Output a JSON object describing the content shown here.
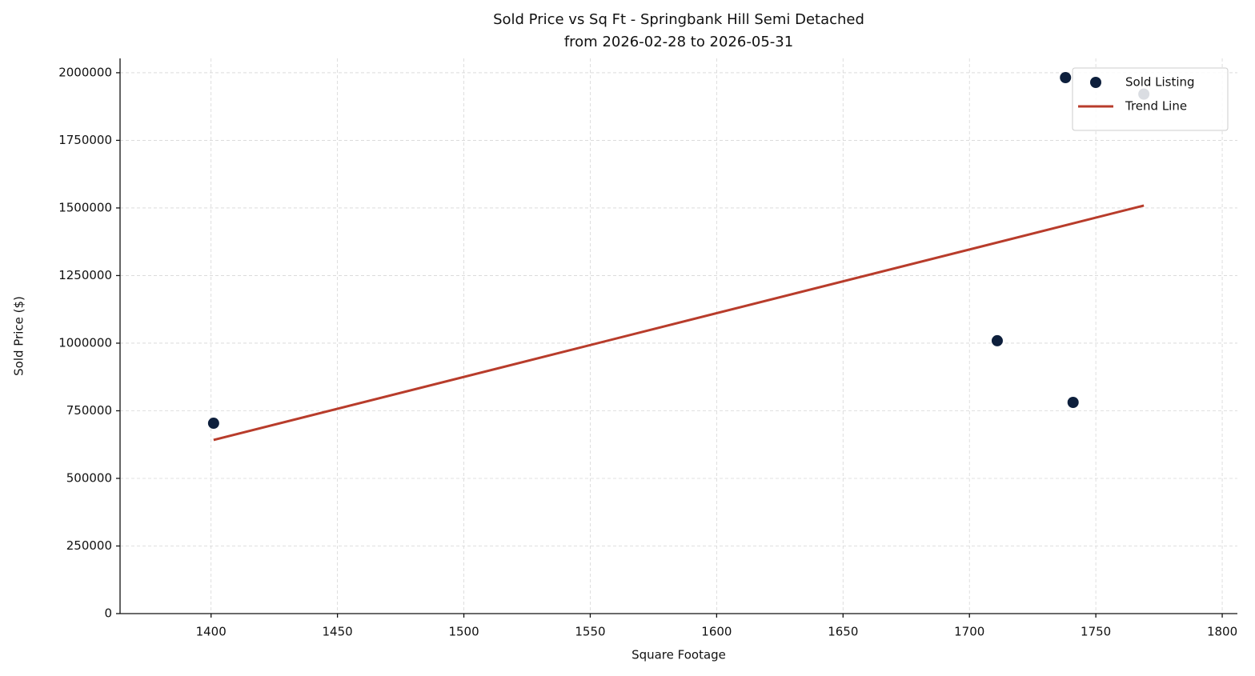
{
  "chart_data": {
    "type": "scatter",
    "title": "Sold Price vs Sq Ft - Springbank Hill Semi Detached",
    "subtitle": "from 2026-02-28 to 2026-05-31",
    "x_label": "Square Footage",
    "y_label": "Sold Price ($)",
    "xlim": [
      1364,
      1806
    ],
    "xticks": [
      1400,
      1450,
      1500,
      1550,
      1600,
      1650,
      1700,
      1750,
      1800
    ],
    "ylim": [
      0,
      2053000
    ],
    "yticks": [
      0,
      250000,
      500000,
      750000,
      1000000,
      1250000,
      1500000,
      1750000,
      2000000
    ],
    "grid": true,
    "legend": "upper-right",
    "series": [
      {
        "name": "Sold Listing",
        "type": "scatter",
        "color": "#0d1f3c",
        "x": [
          1401,
          1711,
          1738,
          1741,
          1769
        ],
        "values": [
          704000,
          1009000,
          1982000,
          781000,
          1921000
        ]
      },
      {
        "name": "Trend Line",
        "type": "line",
        "color": "#b83c2b",
        "x": [
          1401,
          1769
        ],
        "values": [
          642000,
          1509000
        ]
      }
    ]
  }
}
